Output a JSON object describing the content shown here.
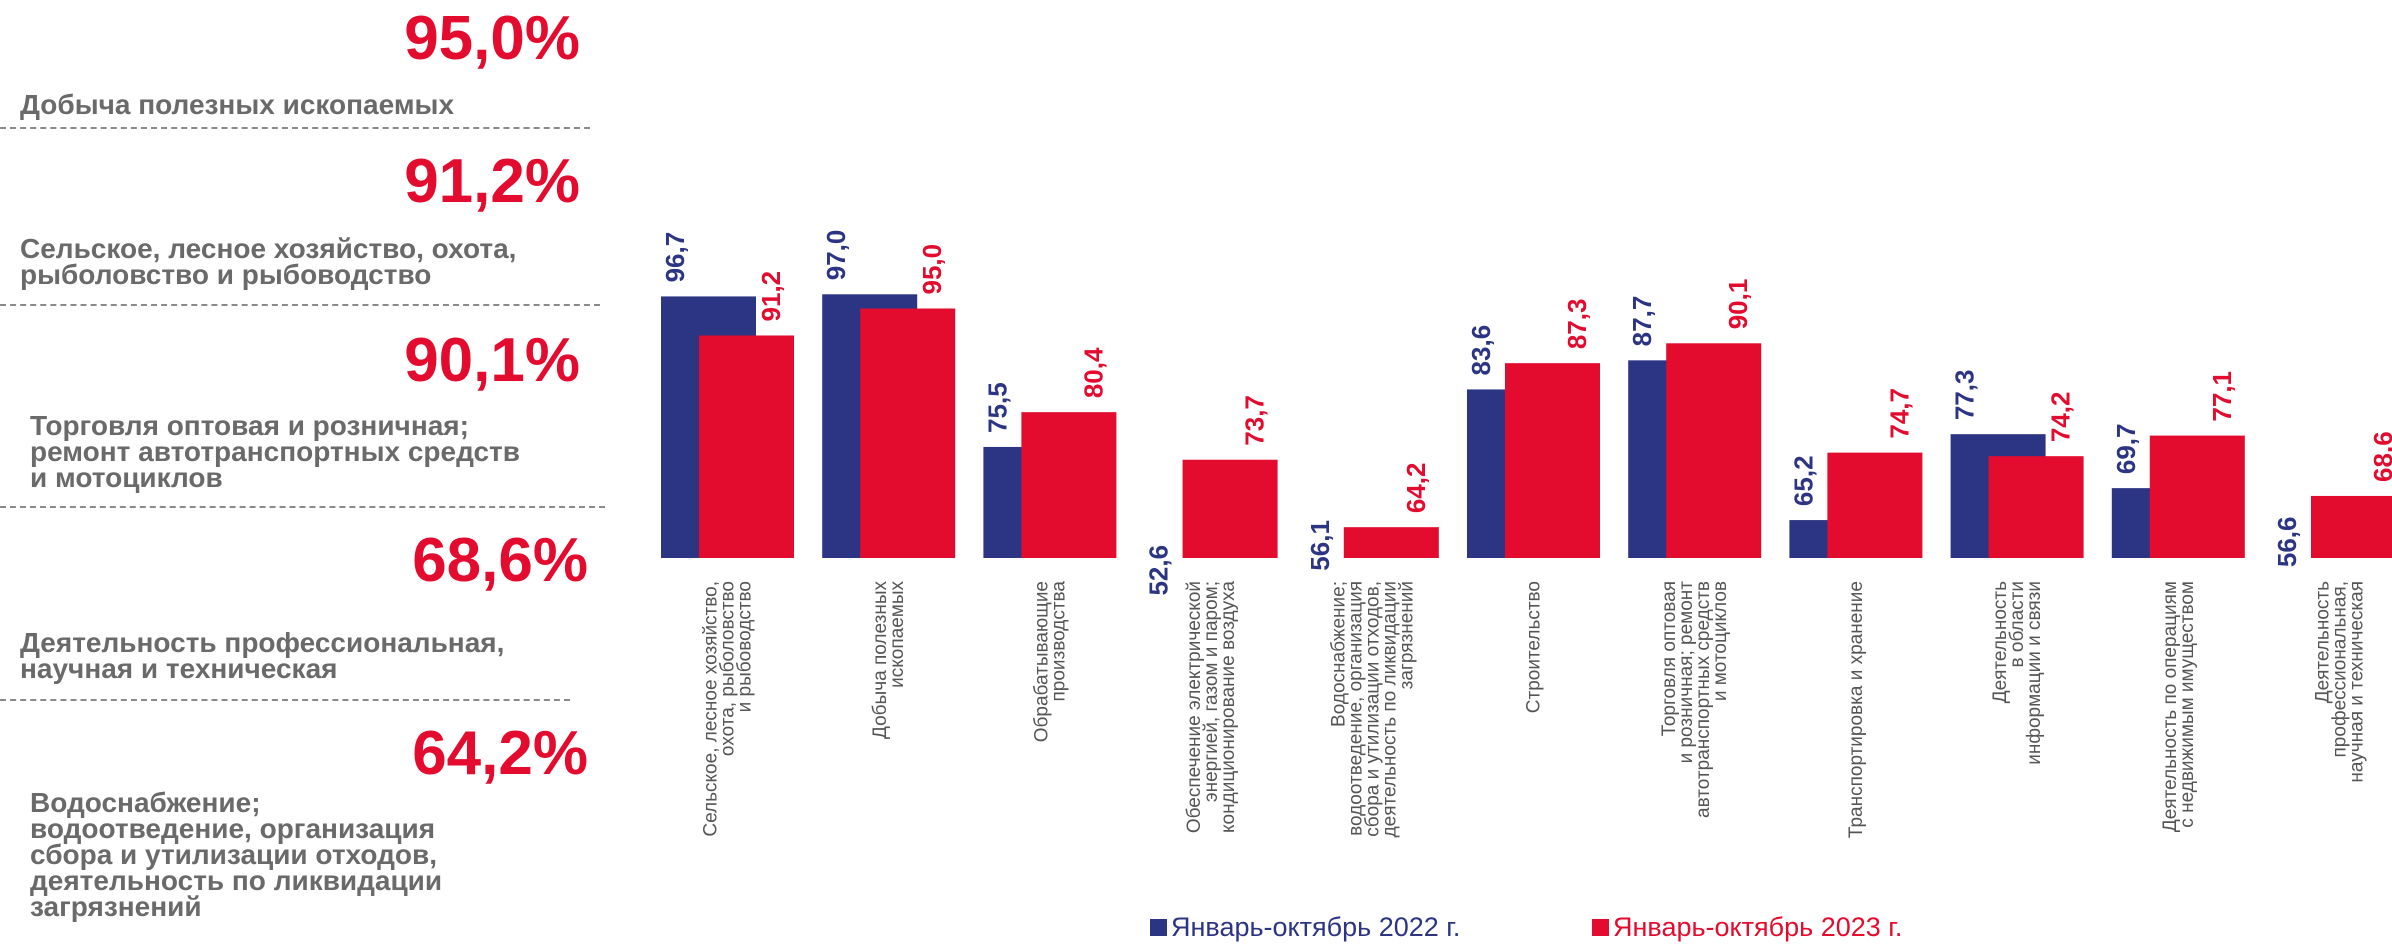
{
  "colors": {
    "series_2022": "#2c3583",
    "series_2023": "#e30b2e",
    "label_gray": "#6a6a6a"
  },
  "left_panel": {
    "stats": [
      {
        "value": "95,0%",
        "label_lines": [
          "Добыча полезных ископаемых"
        ]
      },
      {
        "value": "91,2%",
        "label_lines": [
          "Сельское, лесное хозяйство, охота,",
          "рыболовство и рыбоводство"
        ]
      },
      {
        "value": "90,1%",
        "label_lines": [
          "Торговля оптовая и розничная;",
          "ремонт автотранспортных средств",
          "и мотоциклов"
        ]
      },
      {
        "value": "68,6%",
        "label_lines": [
          "Деятельность профессиональная,",
          "научная и техническая"
        ]
      },
      {
        "value": "64,2%",
        "label_lines": [
          "Водоснабжение;",
          "водоотведение, организация",
          "сбора и утилизации отходов,",
          "деятельность по ликвидации",
          "загрязнений"
        ]
      }
    ]
  },
  "chart_data": {
    "type": "bar",
    "title": "",
    "xlabel": "",
    "ylabel": "",
    "ylim": [
      0,
      100
    ],
    "grid": false,
    "legend_position": "bottom",
    "categories": [
      [
        "Сельское, лесное хозяйство,",
        "охота, рыболовство",
        "и рыбоводство"
      ],
      [
        "Добыча полезных",
        "ископаемых"
      ],
      [
        "Обрабатывающие",
        "производства"
      ],
      [
        "Обеспечение электрической",
        "энергией, газом и паром;",
        "кондиционирование воздуха"
      ],
      [
        "Водоснабжение;",
        "водоотведение, организация",
        "сбора и утилизации отходов,",
        "деятельность по ликвидации",
        "загрязнений"
      ],
      [
        "Строительство"
      ],
      [
        "Торговля оптовая",
        "и розничная; ремонт",
        "автотранспортных средств",
        "и мотоциклов"
      ],
      [
        "Транспортировка и хранение"
      ],
      [
        "Деятельность",
        "в области",
        "информации и связи"
      ],
      [
        "Деятельность по операциям",
        "с недвижимым имуществом"
      ],
      [
        "Деятельность",
        "профессиональная,",
        "научная и техническая"
      ]
    ],
    "series": [
      {
        "name": "Январь-октябрь 2022 г.",
        "values": [
          96.7,
          97.0,
          75.5,
          52.6,
          56.1,
          83.6,
          87.7,
          65.2,
          77.3,
          69.7,
          56.6
        ],
        "labels": [
          "96,7",
          "97,0",
          "75,5",
          "52,6",
          "56,1",
          "83,6",
          "87,7",
          "65,2",
          "77,3",
          "69,7",
          "56,6"
        ]
      },
      {
        "name": "Январь-октябрь 2023 г.",
        "values": [
          91.2,
          95.0,
          80.4,
          73.7,
          64.2,
          87.3,
          90.1,
          74.7,
          74.2,
          77.1,
          68.6
        ],
        "labels": [
          "91,2",
          "95,0",
          "80,4",
          "73,7",
          "64,2",
          "87,3",
          "90,1",
          "74,7",
          "74,2",
          "77,1",
          "68,6"
        ]
      }
    ]
  }
}
